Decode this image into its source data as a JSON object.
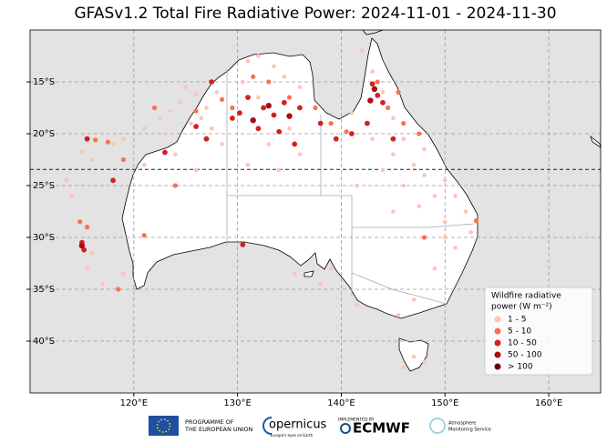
{
  "chart_data": {
    "type": "scatter",
    "title": "GFASv1.2 Total Fire Radiative Power: 2024-11-01 - 2024-11-30",
    "xlim": [
      110,
      165
    ],
    "ylim": [
      -45,
      -10
    ],
    "xticks": [
      {
        "value": 120,
        "label": "120°E"
      },
      {
        "value": 130,
        "label": "130°E"
      },
      {
        "value": 140,
        "label": "140°E"
      },
      {
        "value": 150,
        "label": "150°E"
      },
      {
        "value": 160,
        "label": "160°E"
      }
    ],
    "yticks": [
      {
        "value": -15,
        "label": "15°S"
      },
      {
        "value": -20,
        "label": "20°S"
      },
      {
        "value": -25,
        "label": "25°S"
      },
      {
        "value": -30,
        "label": "30°S"
      },
      {
        "value": -35,
        "label": "35°S"
      },
      {
        "value": -40,
        "label": "40°S"
      }
    ],
    "grid": true,
    "hline": -23.44,
    "legend_title": [
      "Wildfire radiative",
      "power (W m⁻²)"
    ],
    "legend_position": "lower right",
    "series": [
      {
        "name": "1 - 5",
        "color": "#fcc5b0",
        "x": [
          125,
          126,
          124.5,
          127,
          123.5,
          128,
          126.5,
          122.5,
          125.5,
          121,
          119,
          118,
          123,
          127.5,
          128.5,
          124,
          126,
          121,
          116,
          115,
          131,
          132,
          133.5,
          134.5,
          130.5,
          136,
          132,
          135,
          133,
          131,
          134,
          136,
          142,
          143,
          144,
          145,
          141,
          146,
          145,
          147,
          148,
          146,
          149,
          150,
          151,
          147.5,
          145,
          152,
          150,
          148,
          143,
          144,
          141.5,
          150,
          151,
          152.5,
          149,
          147,
          145.5,
          141.5,
          138,
          139,
          135.5,
          119,
          116,
          117,
          115.5,
          113.5,
          114,
          147,
          146,
          148
        ],
        "y": [
          -15.5,
          -16.2,
          -17,
          -17.5,
          -17.8,
          -16,
          -18.5,
          -18.5,
          -19,
          -19.5,
          -20.5,
          -21,
          -20,
          -19.5,
          -21,
          -22,
          -23.5,
          -23,
          -22.5,
          -21.7,
          -13,
          -12.5,
          -13.5,
          -14.5,
          -15,
          -15.5,
          -16.5,
          -19.5,
          -21,
          -23,
          -23.5,
          -22,
          -12,
          -14,
          -16,
          -18.5,
          -18,
          -20.5,
          -22,
          -23,
          -24,
          -25,
          -26,
          -24.5,
          -26,
          -27,
          -27.5,
          -27.5,
          -28.5,
          -21.5,
          -20.5,
          -23.5,
          -25,
          -30,
          -31,
          -29.5,
          -33,
          -36,
          -37.5,
          -36.5,
          -34.5,
          -33,
          -33.5,
          -33.5,
          -31.5,
          -34.5,
          -33,
          -24.5,
          -26,
          -41.5,
          -42.5,
          -42
        ]
      },
      {
        "name": "5 - 10",
        "color": "#fb7050",
        "x": [
          116.3,
          117.5,
          122,
          126,
          128.5,
          129.5,
          131.5,
          133,
          135,
          137.5,
          139,
          140.5,
          143.5,
          144.5,
          145.5,
          146,
          119,
          124,
          121,
          115.5,
          114.8,
          147.5,
          118.5,
          148,
          153
        ],
        "y": [
          -20.6,
          -20.8,
          -17.5,
          -17.8,
          -16.7,
          -17.5,
          -14.5,
          -15,
          -16.5,
          -17.5,
          -19,
          -19.8,
          -15,
          -17.5,
          -16,
          -19,
          -22.5,
          -25,
          -29.8,
          -29,
          -28.5,
          -20,
          -35,
          -30,
          -28.4
        ]
      },
      {
        "name": "10 - 50",
        "color": "#d42020",
        "x": [
          131,
          132.5,
          133.5,
          134.5,
          136,
          129.5,
          130.2,
          132,
          134,
          135.5,
          138,
          139.5,
          141,
          143,
          143.5,
          144,
          145,
          142.5,
          126,
          127,
          115,
          115.2,
          118,
          123,
          130.5,
          115.5,
          127.5
        ],
        "y": [
          -16.5,
          -17.5,
          -18.2,
          -17,
          -17.5,
          -18.5,
          -18,
          -19.5,
          -19.8,
          -21,
          -19,
          -20.5,
          -20,
          -15.2,
          -16.3,
          -17,
          -20.5,
          -19,
          -19.3,
          -20.5,
          -30.5,
          -31.2,
          -24.5,
          -21.8,
          -30.7,
          -20.5,
          -15
        ]
      },
      {
        "name": "50 - 100",
        "color": "#a50f15",
        "x": [
          143.2,
          133,
          142.8,
          131.5,
          115,
          135
        ],
        "y": [
          -15.7,
          -17.3,
          -16.8,
          -18.7,
          -30.8,
          -18.3
        ]
      },
      {
        "name": "> 100",
        "color": "#67000d",
        "x": [],
        "y": []
      }
    ]
  },
  "footer": {
    "eu": [
      "PROGRAMME OF",
      "THE EUROPEAN UNION"
    ],
    "copernicus": "opernicus",
    "copernicus_tagline": "Europe's eyes on Earth",
    "implemented": "IMPLEMENTED BY",
    "ecmwf": "ECMWF",
    "cams": [
      "Atmosphere",
      "Monitoring Service"
    ]
  }
}
